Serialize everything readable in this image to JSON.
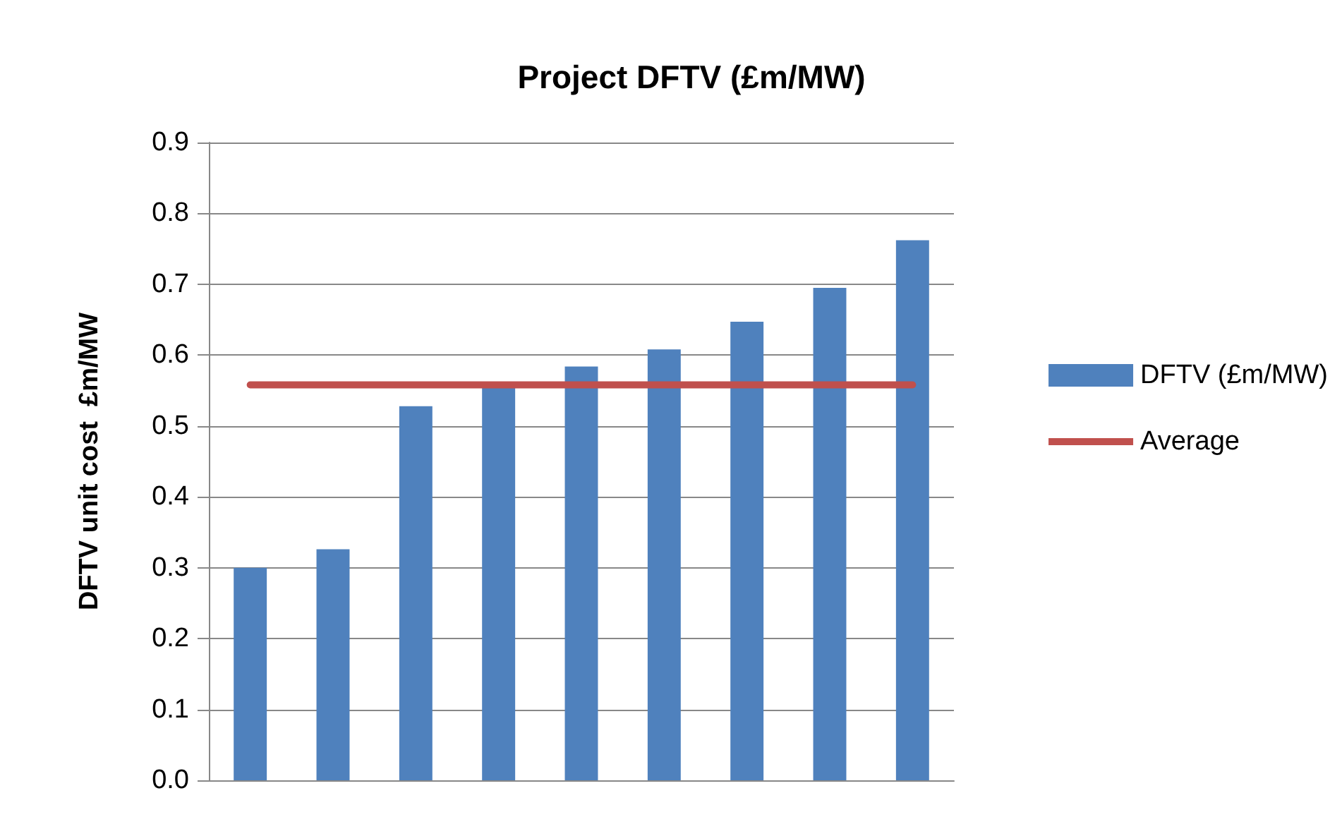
{
  "chart_data": {
    "type": "bar",
    "title": "Project DFTV (£m/MW)",
    "ylabel": "DFTV unit cost  £m/MW",
    "categories": [
      null,
      null,
      null,
      null,
      null,
      null,
      null,
      null,
      null
    ],
    "series": [
      {
        "name": "DFTV (£m/MW)",
        "color": "#4f81bd",
        "values": [
          0.3,
          0.326,
          0.528,
          0.555,
          0.584,
          0.608,
          0.647,
          0.695,
          0.762
        ]
      },
      {
        "name": "Average",
        "type": "line",
        "color": "#c0504d",
        "marker": "none",
        "values": [
          0.558,
          0.558,
          0.558,
          0.558,
          0.558,
          0.558,
          0.558,
          0.558,
          0.558
        ]
      }
    ],
    "ylim": [
      0,
      0.9
    ],
    "yticks": [
      {
        "value": 0,
        "label": "0.0"
      },
      0.1,
      0.2,
      0.3,
      0.4,
      0.5,
      0.6,
      0.7,
      0.8,
      0.9
    ],
    "grid": "y",
    "legend": "right"
  }
}
